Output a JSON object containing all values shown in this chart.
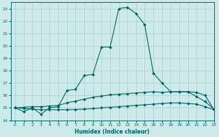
{
  "xlabel": "Humidex (Indice chaleur)",
  "background_color": "#cceaea",
  "grid_color": "#aacccc",
  "line_color": "#006060",
  "xlim": [
    -0.5,
    23
  ],
  "ylim": [
    14,
    23.5
  ],
  "x_ticks": [
    0,
    1,
    2,
    3,
    4,
    5,
    6,
    7,
    8,
    9,
    10,
    11,
    12,
    13,
    14,
    15,
    16,
    17,
    18,
    19,
    20,
    21,
    22,
    23
  ],
  "y_ticks": [
    14,
    15,
    16,
    17,
    18,
    19,
    20,
    21,
    22,
    23
  ],
  "line1_x": [
    0,
    1,
    2,
    3,
    4,
    5,
    6,
    7,
    8,
    9,
    10,
    11,
    12,
    13,
    14,
    15,
    16,
    17,
    18,
    19,
    20,
    21,
    22,
    23
  ],
  "line1_y": [
    15.0,
    14.7,
    15.0,
    14.5,
    15.0,
    15.1,
    16.4,
    16.5,
    17.6,
    17.7,
    19.9,
    19.9,
    23.0,
    23.1,
    22.6,
    21.7,
    17.8,
    17.0,
    16.3,
    16.3,
    16.3,
    15.9,
    15.5,
    14.9
  ],
  "line2_x": [
    0,
    1,
    2,
    3,
    4,
    5,
    6,
    7,
    8,
    9,
    10,
    11,
    12,
    13,
    14,
    15,
    16,
    17,
    18,
    19,
    20,
    21,
    22,
    23
  ],
  "line2_y": [
    15.0,
    15.05,
    15.1,
    15.1,
    15.15,
    15.2,
    15.4,
    15.55,
    15.7,
    15.85,
    15.95,
    16.05,
    16.1,
    16.15,
    16.2,
    16.25,
    16.3,
    16.25,
    16.3,
    16.3,
    16.3,
    16.25,
    16.0,
    14.85
  ],
  "line3_x": [
    0,
    1,
    2,
    3,
    4,
    5,
    6,
    7,
    8,
    9,
    10,
    11,
    12,
    13,
    14,
    15,
    16,
    17,
    18,
    19,
    20,
    21,
    22,
    23
  ],
  "line3_y": [
    15.0,
    14.95,
    14.9,
    14.85,
    14.85,
    14.85,
    14.85,
    14.87,
    14.9,
    14.95,
    15.0,
    15.05,
    15.1,
    15.15,
    15.2,
    15.25,
    15.3,
    15.35,
    15.4,
    15.4,
    15.35,
    15.3,
    15.1,
    14.85
  ]
}
